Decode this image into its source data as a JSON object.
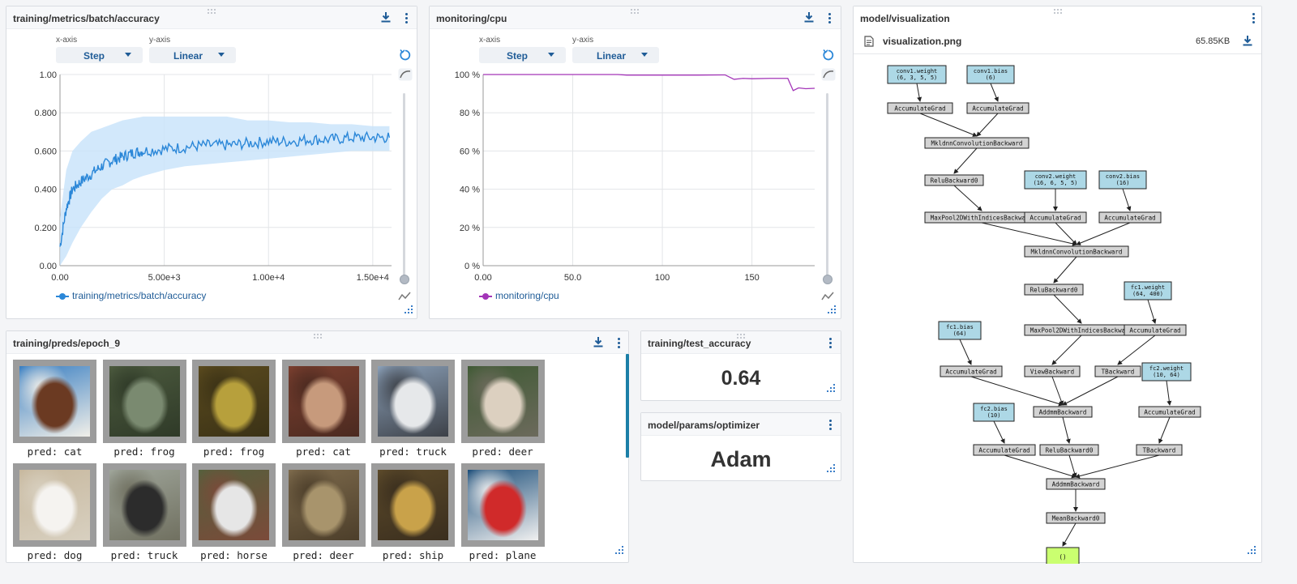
{
  "colors": {
    "accent": "#1f5c97",
    "accuracy_line": "#2b87d8",
    "accuracy_band": "#c7e2fa",
    "cpu_line": "#a335b8",
    "node_param": "#add8e6",
    "node_op": "#d3d3d3",
    "node_output": "#caff70"
  },
  "icons": {
    "download": "download-icon",
    "menu": "kebab-menu-icon",
    "drag": "drag-handle-icon",
    "reset": "reset-zoom-icon",
    "smooth": "smoothing-icon",
    "resize": "resize-corner-icon",
    "file": "file-icon"
  },
  "panels": {
    "accuracy": {
      "title": "training/metrics/batch/accuracy",
      "xaxis_label": "x-axis",
      "yaxis_label": "y-axis",
      "xaxis_value": "Step",
      "yaxis_value": "Linear",
      "legend": "training/metrics/batch/accuracy"
    },
    "cpu": {
      "title": "monitoring/cpu",
      "xaxis_label": "x-axis",
      "yaxis_label": "y-axis",
      "xaxis_value": "Step",
      "yaxis_value": "Linear",
      "legend": "monitoring/cpu"
    },
    "preds": {
      "title": "training/preds/epoch_9",
      "images": [
        {
          "caption": "pred: cat",
          "subject": "horse head close-up"
        },
        {
          "caption": "pred: frog",
          "subject": "frog on rock"
        },
        {
          "caption": "pred: frog",
          "subject": "frog"
        },
        {
          "caption": "pred: cat",
          "subject": "deer"
        },
        {
          "caption": "pred: truck",
          "subject": "truck"
        },
        {
          "caption": "pred: deer",
          "subject": "ostrich"
        },
        {
          "caption": "pred: dog",
          "subject": "white dog"
        },
        {
          "caption": "pred: truck",
          "subject": "black car"
        },
        {
          "caption": "pred: horse",
          "subject": "horse with rider"
        },
        {
          "caption": "pred: deer",
          "subject": "bird"
        },
        {
          "caption": "pred: ship",
          "subject": "animal in grass"
        },
        {
          "caption": "pred: plane",
          "subject": "red airplane"
        }
      ]
    },
    "test_accuracy": {
      "title": "training/test_accuracy",
      "value": "0.64"
    },
    "optimizer": {
      "title": "model/params/optimizer",
      "value": "Adam"
    },
    "visualization": {
      "title": "model/visualization",
      "file_name": "visualization.png",
      "file_size": "65.85KB"
    }
  },
  "chart_data": [
    {
      "type": "line",
      "title": "training/metrics/batch/accuracy",
      "xlabel": "",
      "ylabel": "",
      "xlim": [
        0,
        15900
      ],
      "ylim": [
        0,
        1.0
      ],
      "xticks": [
        0,
        5000,
        10000,
        15000
      ],
      "xtick_labels": [
        "0.00",
        "5.00e+3",
        "1.00e+4",
        "1.50e+4"
      ],
      "yticks": [
        0,
        0.2,
        0.4,
        0.6,
        0.8,
        1.0
      ],
      "ytick_labels": [
        "0.00",
        "0.200",
        "0.400",
        "0.600",
        "0.800",
        "1.00"
      ],
      "grid": true,
      "series": [
        {
          "name": "training/metrics/batch/accuracy",
          "x": [
            0,
            300,
            600,
            1000,
            1500,
            2000,
            2500,
            3000,
            3500,
            4000,
            5000,
            6000,
            7000,
            8000,
            9000,
            10000,
            11000,
            12000,
            13000,
            14000,
            15000,
            15800
          ],
          "y": [
            0.1,
            0.3,
            0.4,
            0.44,
            0.48,
            0.52,
            0.55,
            0.57,
            0.59,
            0.6,
            0.61,
            0.62,
            0.63,
            0.63,
            0.64,
            0.65,
            0.65,
            0.66,
            0.66,
            0.67,
            0.67,
            0.67
          ],
          "band_low": [
            0.0,
            0.05,
            0.12,
            0.2,
            0.28,
            0.35,
            0.4,
            0.42,
            0.45,
            0.47,
            0.5,
            0.52,
            0.53,
            0.54,
            0.55,
            0.56,
            0.57,
            0.58,
            0.59,
            0.6,
            0.6,
            0.6
          ],
          "band_high": [
            0.25,
            0.5,
            0.6,
            0.65,
            0.7,
            0.72,
            0.74,
            0.76,
            0.77,
            0.78,
            0.78,
            0.78,
            0.78,
            0.78,
            0.76,
            0.76,
            0.75,
            0.75,
            0.74,
            0.74,
            0.73,
            0.73
          ]
        }
      ]
    },
    {
      "type": "line",
      "title": "monitoring/cpu",
      "xlabel": "",
      "ylabel": "",
      "xlim": [
        0,
        185
      ],
      "ylim": [
        0,
        100
      ],
      "xticks": [
        0,
        50,
        100,
        150
      ],
      "xtick_labels": [
        "0.00",
        "50.0",
        "100",
        "150"
      ],
      "yticks": [
        0,
        20,
        40,
        60,
        80,
        100
      ],
      "ytick_labels": [
        "0 %",
        "20 %",
        "40 %",
        "60 %",
        "80 %",
        "100 %"
      ],
      "grid": true,
      "series": [
        {
          "name": "monitoring/cpu",
          "x": [
            0,
            20,
            40,
            60,
            75,
            80,
            100,
            120,
            135,
            140,
            145,
            150,
            160,
            170,
            173,
            176,
            180,
            185
          ],
          "y": [
            100,
            100,
            100,
            100,
            100,
            99.7,
            99.7,
            99.7,
            99.8,
            97.5,
            98,
            97.8,
            98.0,
            98.0,
            91.6,
            93.0,
            92.6,
            92.8
          ]
        }
      ]
    }
  ],
  "graph": {
    "nodes": [
      {
        "id": "n1",
        "label": "conv1.weight\n(6, 3, 5, 5)",
        "kind": "param"
      },
      {
        "id": "n2",
        "label": "conv1.bias\n(6)",
        "kind": "param"
      },
      {
        "id": "n3",
        "label": "AccumulateGrad",
        "kind": "op"
      },
      {
        "id": "n4",
        "label": "AccumulateGrad",
        "kind": "op"
      },
      {
        "id": "n5",
        "label": "MkldnnConvolutionBackward",
        "kind": "op"
      },
      {
        "id": "n6",
        "label": "ReluBackward0",
        "kind": "op"
      },
      {
        "id": "n7",
        "label": "conv2.weight\n(16, 6, 5, 5)",
        "kind": "param"
      },
      {
        "id": "n8",
        "label": "conv2.bias\n(16)",
        "kind": "param"
      },
      {
        "id": "n9",
        "label": "MaxPool2DWithIndicesBackward",
        "kind": "op"
      },
      {
        "id": "n10",
        "label": "AccumulateGrad",
        "kind": "op"
      },
      {
        "id": "n11",
        "label": "AccumulateGrad",
        "kind": "op"
      },
      {
        "id": "n12",
        "label": "MkldnnConvolutionBackward",
        "kind": "op"
      },
      {
        "id": "n13",
        "label": "ReluBackward0",
        "kind": "op"
      },
      {
        "id": "n14",
        "label": "fc1.weight\n(64, 400)",
        "kind": "param"
      },
      {
        "id": "n15",
        "label": "fc1.bias\n(64)",
        "kind": "param"
      },
      {
        "id": "n16",
        "label": "MaxPool2DWithIndicesBackward",
        "kind": "op"
      },
      {
        "id": "n17",
        "label": "AccumulateGrad",
        "kind": "op"
      },
      {
        "id": "n18",
        "label": "AccumulateGrad",
        "kind": "op"
      },
      {
        "id": "n19",
        "label": "ViewBackward",
        "kind": "op"
      },
      {
        "id": "n20",
        "label": "TBackward",
        "kind": "op"
      },
      {
        "id": "n21",
        "label": "fc2.weight\n(10, 64)",
        "kind": "param"
      },
      {
        "id": "n22",
        "label": "fc2.bias\n(10)",
        "kind": "param"
      },
      {
        "id": "n23",
        "label": "AddmmBackward",
        "kind": "op"
      },
      {
        "id": "n24",
        "label": "AccumulateGrad",
        "kind": "op"
      },
      {
        "id": "n25",
        "label": "AccumulateGrad",
        "kind": "op"
      },
      {
        "id": "n26",
        "label": "ReluBackward0",
        "kind": "op"
      },
      {
        "id": "n27",
        "label": "TBackward",
        "kind": "op"
      },
      {
        "id": "n28",
        "label": "AddmmBackward",
        "kind": "op"
      },
      {
        "id": "n29",
        "label": "MeanBackward0",
        "kind": "op"
      },
      {
        "id": "n30",
        "label": "()",
        "kind": "output"
      }
    ],
    "edges": [
      [
        "n1",
        "n3"
      ],
      [
        "n2",
        "n4"
      ],
      [
        "n3",
        "n5"
      ],
      [
        "n4",
        "n5"
      ],
      [
        "n5",
        "n6"
      ],
      [
        "n6",
        "n9"
      ],
      [
        "n7",
        "n10"
      ],
      [
        "n8",
        "n11"
      ],
      [
        "n9",
        "n12"
      ],
      [
        "n10",
        "n12"
      ],
      [
        "n11",
        "n12"
      ],
      [
        "n12",
        "n13"
      ],
      [
        "n13",
        "n16"
      ],
      [
        "n14",
        "n17"
      ],
      [
        "n15",
        "n18"
      ],
      [
        "n16",
        "n19"
      ],
      [
        "n17",
        "n20"
      ],
      [
        "n18",
        "n23"
      ],
      [
        "n19",
        "n23"
      ],
      [
        "n20",
        "n23"
      ],
      [
        "n21",
        "n24"
      ],
      [
        "n22",
        "n25"
      ],
      [
        "n23",
        "n26"
      ],
      [
        "n24",
        "n27"
      ],
      [
        "n25",
        "n28"
      ],
      [
        "n26",
        "n28"
      ],
      [
        "n27",
        "n28"
      ],
      [
        "n28",
        "n29"
      ],
      [
        "n29",
        "n30"
      ]
    ]
  }
}
